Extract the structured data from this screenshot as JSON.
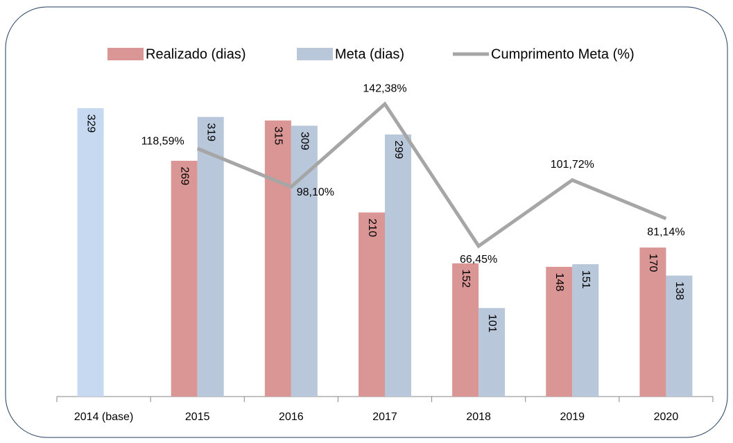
{
  "chart_data": {
    "type": "bar-line",
    "categories": [
      "2014 (base)",
      "2015",
      "2016",
      "2017",
      "2018",
      "2019",
      "2020"
    ],
    "series": [
      {
        "name": "Realizado (dias)",
        "color": "#d99694",
        "colors": [
          "#c6d9f1",
          "#d99694",
          "#d99694",
          "#d99694",
          "#d99694",
          "#d99694",
          "#d99694"
        ],
        "values": [
          329,
          269,
          315,
          210,
          152,
          148,
          170
        ]
      },
      {
        "name": "Meta (dias)",
        "color": "#b9c7da",
        "values": [
          null,
          319,
          309,
          299,
          101,
          151,
          138
        ]
      },
      {
        "name": "Cumprimento Meta (%)",
        "color": "#a6a6a6",
        "axis": "y2",
        "type": "line",
        "values": [
          null,
          118.59,
          98.1,
          142.38,
          66.45,
          101.72,
          81.14
        ],
        "value_labels": [
          null,
          "118,59%",
          "98,10%",
          "142,38%",
          "66,45%",
          "101,72%",
          "81,14%"
        ]
      }
    ],
    "ylim": [
      0,
      350
    ],
    "y2lim": [
      -14,
      150
    ],
    "legend": "top"
  }
}
